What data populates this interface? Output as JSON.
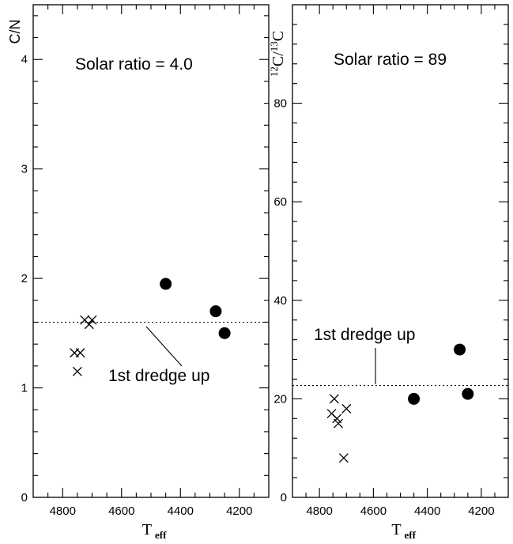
{
  "chart_data": [
    {
      "type": "scatter",
      "ylabel": "C/N",
      "xlabel": "T",
      "xlabel_sub": "eff",
      "xlim": [
        4900,
        4100
      ],
      "ylim": [
        0,
        4.5
      ],
      "xticks": [
        4800,
        4600,
        4400,
        4200
      ],
      "yticks": [
        0,
        1,
        2,
        3,
        4
      ],
      "solar_note": "Solar ratio = 4.0",
      "dredge_label": "1st dredge up",
      "dredge_value": 1.6,
      "series": [
        {
          "marker": "cross",
          "points": [
            [
              4760,
              1.32
            ],
            [
              4740,
              1.32
            ],
            [
              4750,
              1.15
            ],
            [
              4725,
              1.62
            ],
            [
              4710,
              1.58
            ],
            [
              4700,
              1.62
            ]
          ]
        },
        {
          "marker": "filled-circle",
          "points": [
            [
              4450,
              1.95
            ],
            [
              4280,
              1.7
            ],
            [
              4250,
              1.5
            ]
          ]
        }
      ]
    },
    {
      "type": "scatter",
      "ylabel": "12C/13C",
      "xlabel": "T",
      "xlabel_sub": "eff",
      "xlim": [
        4900,
        4100
      ],
      "ylim": [
        0,
        100
      ],
      "xticks": [
        4800,
        4600,
        4400,
        4200
      ],
      "yticks": [
        0,
        20,
        40,
        60,
        80
      ],
      "solar_note": "Solar ratio = 89",
      "dredge_label": "1st dredge up",
      "dredge_value": 22.7,
      "series": [
        {
          "marker": "cross",
          "points": [
            [
              4755,
              17
            ],
            [
              4745,
              20
            ],
            [
              4735,
              16
            ],
            [
              4730,
              15
            ],
            [
              4700,
              18
            ],
            [
              4710,
              8
            ]
          ]
        },
        {
          "marker": "filled-circle",
          "points": [
            [
              4450,
              20
            ],
            [
              4280,
              30
            ],
            [
              4250,
              21
            ]
          ]
        }
      ]
    }
  ]
}
